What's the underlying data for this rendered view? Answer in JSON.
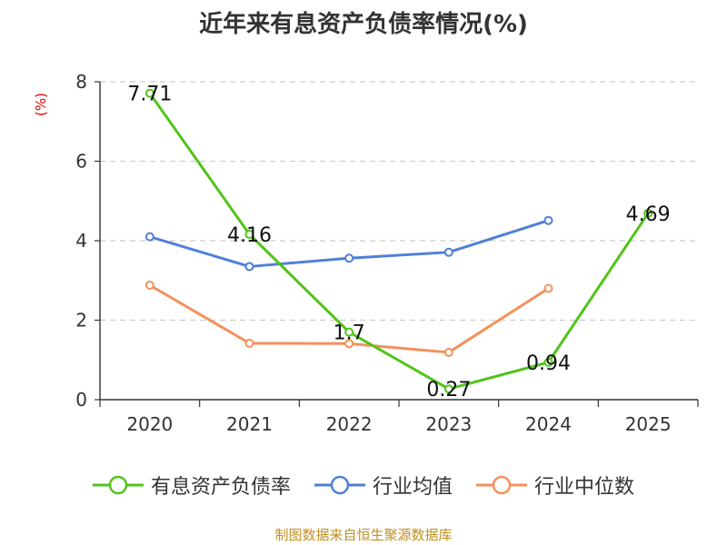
{
  "chart_data": {
    "type": "line",
    "title": "近年来有息资产负债率情况(%)",
    "ylabel": "(%)",
    "xlabel": "",
    "categories": [
      "2020",
      "2021",
      "2022",
      "2023",
      "2024",
      "2025"
    ],
    "ylim": [
      0,
      8
    ],
    "yticks": [
      0,
      2,
      4,
      6,
      8
    ],
    "grid": true,
    "legend_position": "bottom",
    "series": [
      {
        "name": "有息资产负债率",
        "color": "#52c41a",
        "values": [
          7.71,
          4.16,
          1.7,
          0.27,
          0.94,
          4.69
        ],
        "labels": [
          "7.71",
          "4.16",
          "1.7",
          "0.27",
          "0.94",
          "4.69"
        ]
      },
      {
        "name": "行业均值",
        "color": "#4f7fd8",
        "values": [
          4.1,
          3.35,
          3.56,
          3.71,
          4.51,
          null
        ]
      },
      {
        "name": "行业中位数",
        "color": "#f5905a",
        "values": [
          2.88,
          1.42,
          1.41,
          1.19,
          2.8,
          null
        ]
      }
    ]
  },
  "footer": {
    "source": "制图数据来自恒生聚源数据库"
  }
}
